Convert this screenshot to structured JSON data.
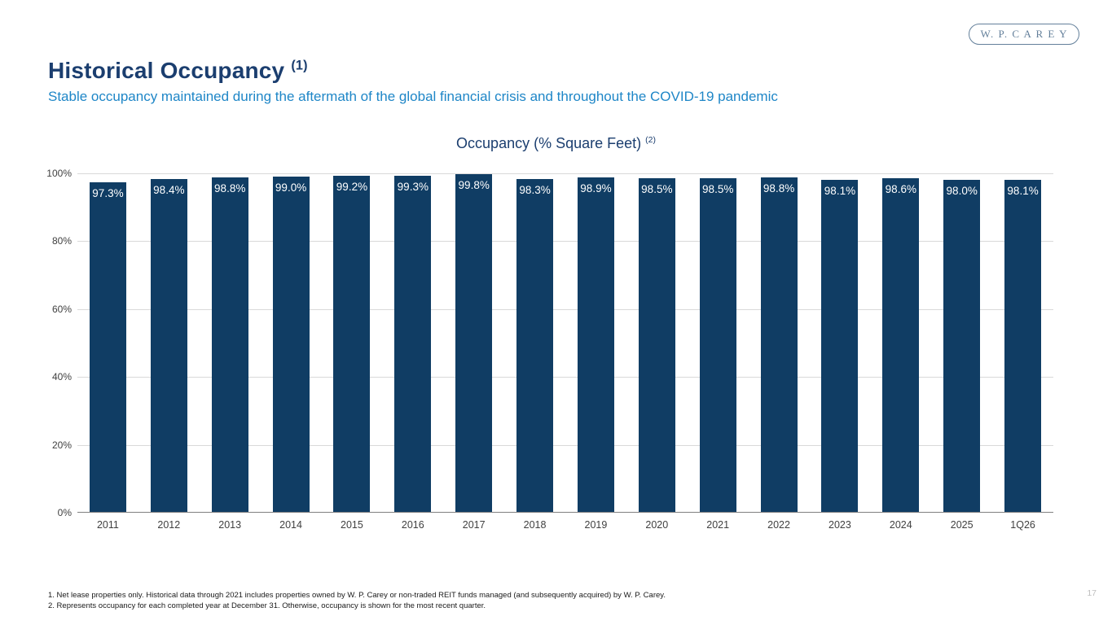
{
  "slide": {
    "title": "Historical Occupancy",
    "title_superscript": "(1)",
    "subtitle": "Stable occupancy maintained during the aftermath of the global financial crisis and throughout the COVID-19 pandemic",
    "logo_text": "W. P. C A R E Y",
    "page_number": "17",
    "footnotes": [
      "1. Net lease properties only. Historical data through 2021 includes properties owned by W. P. Carey or non-traded REIT funds managed (and subsequently acquired) by W. P. Carey.",
      "2. Represents occupancy for each completed year at December 31. Otherwise, occupancy is shown for the most recent quarter."
    ]
  },
  "chart_data": {
    "type": "bar",
    "title": "Occupancy (% Square Feet)",
    "title_superscript": "(2)",
    "categories": [
      "2011",
      "2012",
      "2013",
      "2014",
      "2015",
      "2016",
      "2017",
      "2018",
      "2019",
      "2020",
      "2021",
      "2022",
      "2023",
      "2024",
      "2025",
      "1Q26"
    ],
    "values": [
      97.3,
      98.4,
      98.8,
      99.0,
      99.2,
      99.3,
      99.8,
      98.3,
      98.9,
      98.5,
      98.5,
      98.8,
      98.1,
      98.6,
      98.0,
      98.1
    ],
    "value_labels": [
      "97.3%",
      "98.4%",
      "98.8%",
      "99.0%",
      "99.2%",
      "99.3%",
      "99.8%",
      "98.3%",
      "98.9%",
      "98.5%",
      "98.5%",
      "98.8%",
      "98.1%",
      "98.6%",
      "98.0%",
      "98.1%"
    ],
    "y_tick_labels": [
      "100%",
      "80%",
      "60%",
      "40%",
      "20%",
      "0%"
    ],
    "y_tick_values": [
      100,
      80,
      60,
      40,
      20,
      0
    ],
    "ylim": [
      0,
      100
    ],
    "grid": true,
    "legend": "none",
    "xlabel": "",
    "ylabel": ""
  },
  "colors": {
    "title": "#1B3E6F",
    "subtitle": "#1E86C7",
    "bar": "#103D64",
    "bar_value_label": "#FFFFFF",
    "gridline": "#D9D9D9",
    "axis_line": "#808080",
    "tick_label": "#404040",
    "logo": "#64809B",
    "page_number": "#BFBFBF"
  }
}
